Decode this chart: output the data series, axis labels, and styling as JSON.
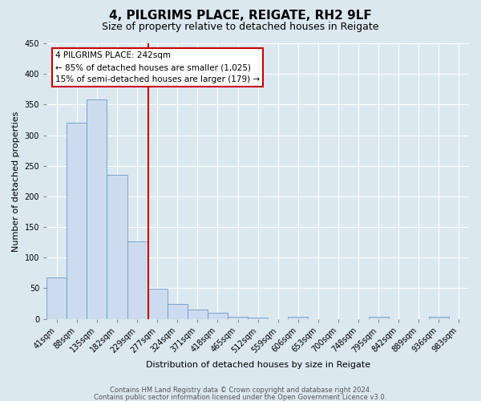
{
  "title": "4, PILGRIMS PLACE, REIGATE, RH2 9LF",
  "subtitle": "Size of property relative to detached houses in Reigate",
  "xlabel": "Distribution of detached houses by size in Reigate",
  "ylabel": "Number of detached properties",
  "footer_line1": "Contains HM Land Registry data © Crown copyright and database right 2024.",
  "footer_line2": "Contains public sector information licensed under the Open Government Licence v3.0.",
  "bin_labels": [
    "41sqm",
    "88sqm",
    "135sqm",
    "182sqm",
    "229sqm",
    "277sqm",
    "324sqm",
    "371sqm",
    "418sqm",
    "465sqm",
    "512sqm",
    "559sqm",
    "606sqm",
    "653sqm",
    "700sqm",
    "748sqm",
    "795sqm",
    "842sqm",
    "889sqm",
    "936sqm",
    "983sqm"
  ],
  "bar_values": [
    67,
    320,
    358,
    235,
    126,
    49,
    25,
    15,
    10,
    4,
    2,
    0,
    3,
    0,
    0,
    0,
    3,
    0,
    0,
    3,
    0
  ],
  "bar_color": "#ccdcee",
  "bar_edge_color": "#6699cc",
  "property_line_x": 4.57,
  "annotation_title": "4 PILGRIMS PLACE: 242sqm",
  "annotation_line1": "← 85% of detached houses are smaller (1,025)",
  "annotation_line2": "15% of semi-detached houses are larger (179) →",
  "annotation_box_color": "#ffffff",
  "annotation_box_edge": "#cc0000",
  "red_line_color": "#cc0000",
  "ylim": [
    0,
    450
  ],
  "yticks": [
    0,
    50,
    100,
    150,
    200,
    250,
    300,
    350,
    400,
    450
  ],
  "background_color": "#dce8f0",
  "plot_background": "#dce8f0",
  "grid_color": "#ffffff",
  "title_fontsize": 11,
  "subtitle_fontsize": 9,
  "xlabel_fontsize": 8,
  "ylabel_fontsize": 8,
  "tick_fontsize": 7,
  "footer_fontsize": 6
}
